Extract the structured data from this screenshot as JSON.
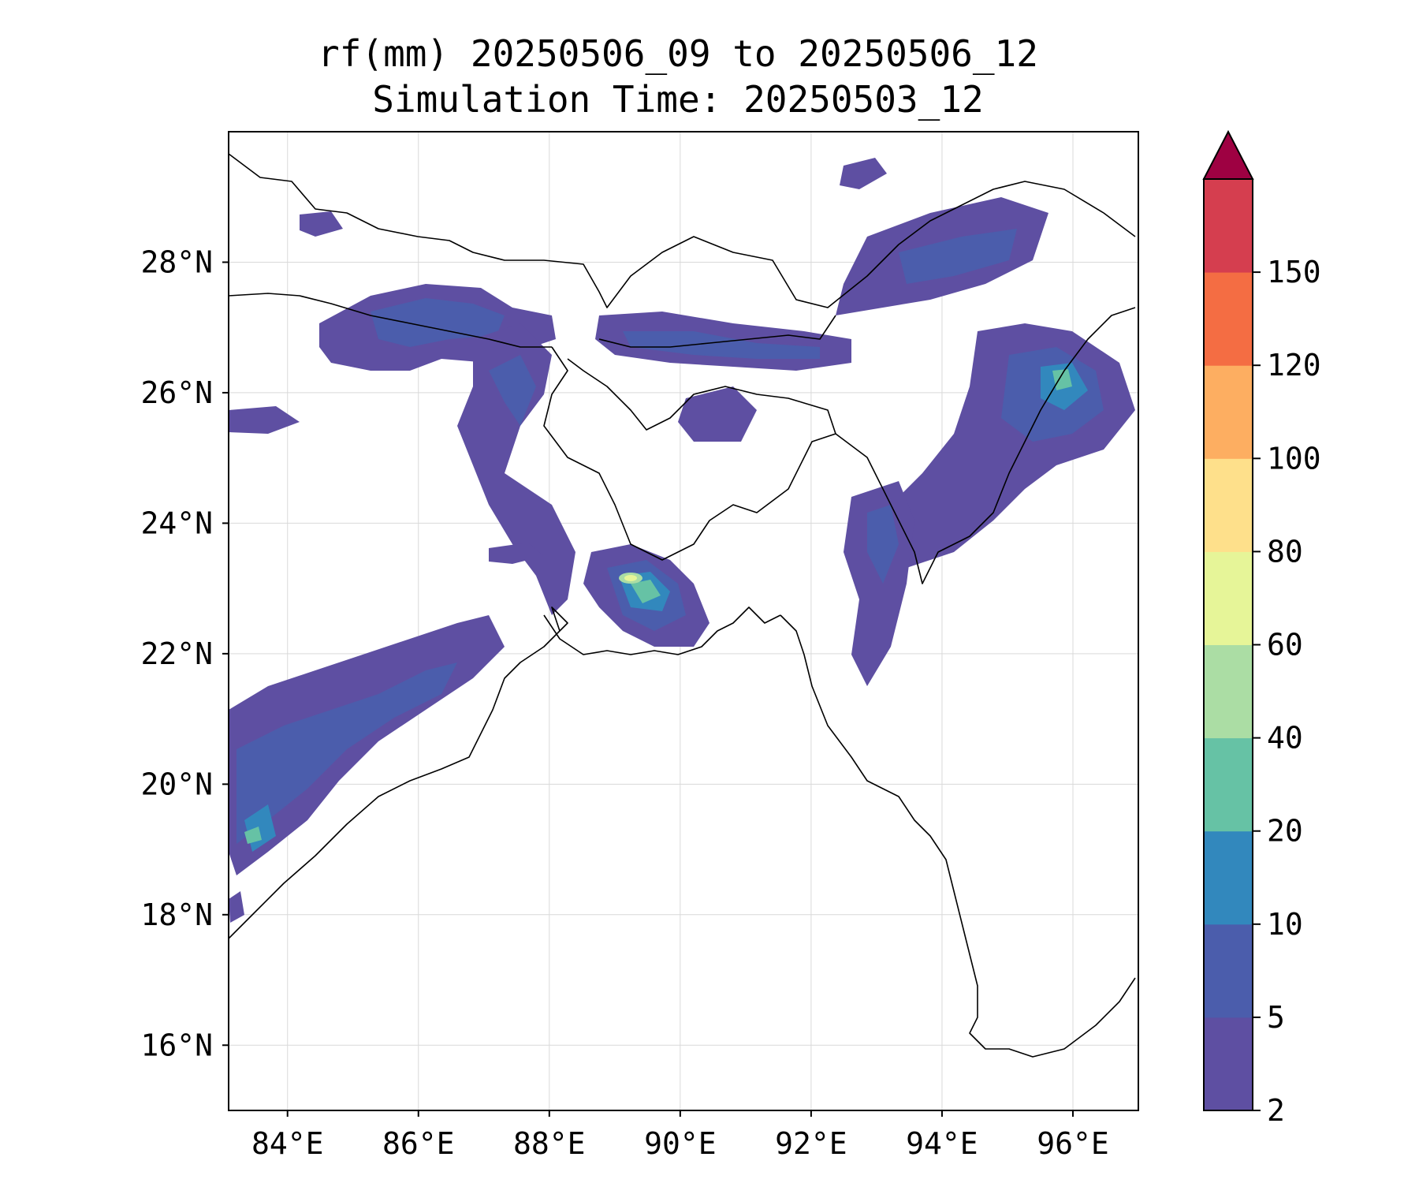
{
  "title": {
    "line1": "rf(mm) 20250506_09 to 20250506_12",
    "line2": "Simulation Time: 20250503_12"
  },
  "map": {
    "lon_range": [
      83.1,
      97.0
    ],
    "lat_range": [
      15.0,
      30.0
    ],
    "x_ticks": [
      84,
      86,
      88,
      90,
      92,
      94,
      96
    ],
    "x_tick_labels": [
      "84°E",
      "86°E",
      "88°E",
      "90°E",
      "92°E",
      "94°E",
      "96°E"
    ],
    "y_ticks": [
      16,
      18,
      20,
      22,
      24,
      26,
      28
    ],
    "y_tick_labels": [
      "16°N",
      "18°N",
      "20°N",
      "22°N",
      "24°N",
      "26°N",
      "28°N"
    ],
    "grid": true
  },
  "colorbar": {
    "levels": [
      "2",
      "5",
      "10",
      "20",
      "40",
      "60",
      "80",
      "100",
      "120",
      "150"
    ],
    "colors": [
      "#5e4fa2",
      "#4b5dac",
      "#3288bd",
      "#66c2a5",
      "#abdda4",
      "#e6f598",
      "#fee08b",
      "#fdae61",
      "#f46d43",
      "#d53e4f"
    ],
    "extend_color": "#9e0142",
    "extend": "max"
  }
}
